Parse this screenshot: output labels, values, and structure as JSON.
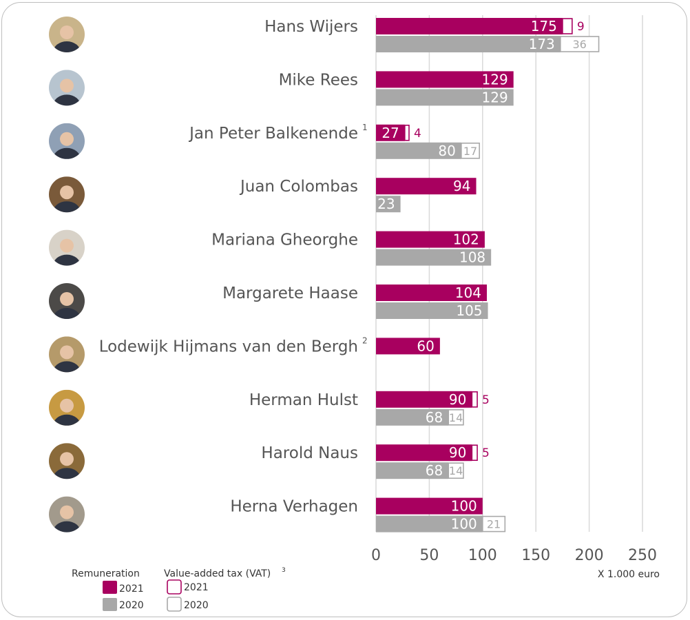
{
  "colors": {
    "rem_2021": "#a8005f",
    "rem_2020": "#a8a8a8",
    "vat_2021_border": "#a8005f",
    "vat_2020_border": "#a8a8a8",
    "grid": "#d9d9d9",
    "name_text": "#555555"
  },
  "chart_data": {
    "type": "bar",
    "orientation": "horizontal",
    "stacked": true,
    "unit_label": "X 1.000 euro",
    "xlim": [
      0,
      250
    ],
    "xticks": [
      0,
      50,
      100,
      150,
      200,
      250
    ],
    "grid": true,
    "legend": {
      "remuneration_title": "Remuneration",
      "vat_title": "Value-added tax (VAT)",
      "vat_footnote": "3",
      "items": [
        {
          "key": "rem_2021",
          "label": "2021"
        },
        {
          "key": "rem_2020",
          "label": "2020"
        },
        {
          "key": "vat_2021",
          "label": "2021"
        },
        {
          "key": "vat_2020",
          "label": "2020"
        }
      ]
    },
    "people": [
      {
        "name": "Hans Wijers",
        "footnote": "",
        "photo_icon": "portrait-avatar",
        "rem_2021": 175,
        "vat_2021": 9,
        "rem_2020": 173,
        "vat_2020": 36
      },
      {
        "name": "Mike Rees",
        "footnote": "",
        "photo_icon": "portrait-avatar",
        "rem_2021": 129,
        "vat_2021": null,
        "rem_2020": 129,
        "vat_2020": null
      },
      {
        "name": "Jan Peter Balkenende",
        "footnote": "1",
        "photo_icon": "portrait-avatar",
        "rem_2021": 27,
        "vat_2021": 4,
        "rem_2020": 80,
        "vat_2020": 17
      },
      {
        "name": "Juan Colombas",
        "footnote": "",
        "photo_icon": "portrait-avatar",
        "rem_2021": 94,
        "vat_2021": null,
        "rem_2020": 23,
        "vat_2020": null
      },
      {
        "name": "Mariana Gheorghe",
        "footnote": "",
        "photo_icon": "portrait-avatar",
        "rem_2021": 102,
        "vat_2021": null,
        "rem_2020": 108,
        "vat_2020": null
      },
      {
        "name": "Margarete Haase",
        "footnote": "",
        "photo_icon": "portrait-avatar",
        "rem_2021": 104,
        "vat_2021": null,
        "rem_2020": 105,
        "vat_2020": null
      },
      {
        "name": "Lodewijk Hijmans van den Bergh",
        "footnote": "2",
        "photo_icon": "portrait-avatar",
        "rem_2021": 60,
        "vat_2021": null,
        "rem_2020": null,
        "vat_2020": null
      },
      {
        "name": "Herman Hulst",
        "footnote": "",
        "photo_icon": "portrait-avatar",
        "rem_2021": 90,
        "vat_2021": 5,
        "rem_2020": 68,
        "vat_2020": 14
      },
      {
        "name": "Harold Naus",
        "footnote": "",
        "photo_icon": "portrait-avatar",
        "rem_2021": 90,
        "vat_2021": 5,
        "rem_2020": 68,
        "vat_2020": 14
      },
      {
        "name": "Herna Verhagen",
        "footnote": "",
        "photo_icon": "portrait-avatar",
        "rem_2021": 100,
        "vat_2021": null,
        "rem_2020": 100,
        "vat_2020": 21
      }
    ]
  }
}
